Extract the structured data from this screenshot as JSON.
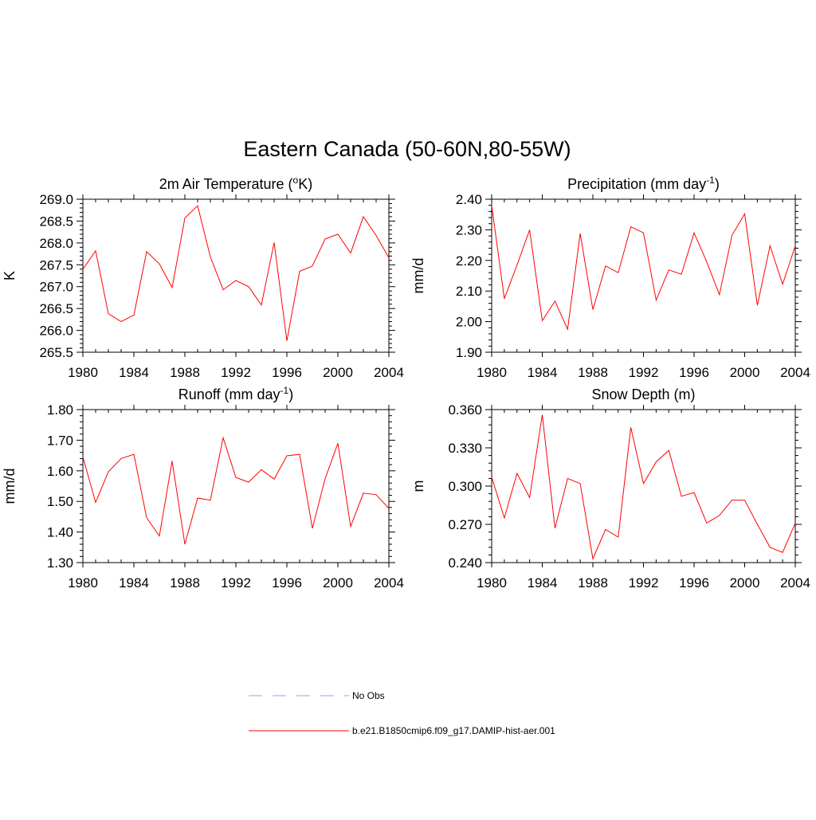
{
  "figure": {
    "title": "Eastern Canada (50-60N,80-55W)"
  },
  "legend": {
    "entries": [
      {
        "label": "No Obs",
        "color": "#9999ff",
        "dash": true
      },
      {
        "label": "b.e21.B1850cmip6.f09_g17.DAMIP-hist-aer.001",
        "color": "#ff0000",
        "dash": false
      }
    ]
  },
  "chart_data": [
    {
      "type": "line",
      "title": "2m Air Temperature (°K)",
      "title_main": "2m Air Temperature (",
      "title_sup": "o",
      "title_end": "K)",
      "ylabel": "K",
      "xlim": [
        1980,
        2004
      ],
      "ylim": [
        265.5,
        269.0
      ],
      "xticks": [
        1980,
        1984,
        1988,
        1992,
        1996,
        2000,
        2004
      ],
      "yticks": [
        "265.5",
        "266.0",
        "266.5",
        "267.0",
        "267.5",
        "268.0",
        "268.5",
        "269.0"
      ],
      "x": [
        1980,
        1981,
        1982,
        1983,
        1984,
        1985,
        1986,
        1987,
        1988,
        1989,
        1990,
        1991,
        1992,
        1993,
        1994,
        1995,
        1996,
        1997,
        1998,
        1999,
        2000,
        2001,
        2002,
        2003,
        2004
      ],
      "series": [
        {
          "name": "b.e21.B1850cmip6.f09_g17.DAMIP-hist-aer.001",
          "color": "#ff0000",
          "values": [
            267.4,
            267.82,
            266.38,
            266.2,
            266.35,
            267.8,
            267.52,
            266.98,
            268.57,
            268.85,
            267.68,
            266.93,
            267.14,
            267.0,
            266.58,
            268.01,
            265.76,
            267.35,
            267.47,
            268.09,
            268.2,
            267.77,
            268.6,
            268.17,
            267.66
          ]
        }
      ]
    },
    {
      "type": "line",
      "title": "Precipitation (mm day-1)",
      "title_main": "Precipitation (mm day",
      "title_sup": "-1",
      "title_end": ")",
      "ylabel": "mm/d",
      "xlim": [
        1980,
        2004
      ],
      "ylim": [
        1.9,
        2.4
      ],
      "xticks": [
        1980,
        1984,
        1988,
        1992,
        1996,
        2000,
        2004
      ],
      "yticks": [
        "1.90",
        "2.00",
        "2.10",
        "2.20",
        "2.30",
        "2.40"
      ],
      "x": [
        1980,
        1981,
        1982,
        1983,
        1984,
        1985,
        1986,
        1987,
        1988,
        1989,
        1990,
        1991,
        1992,
        1993,
        1994,
        1995,
        1996,
        1997,
        1998,
        1999,
        2000,
        2001,
        2002,
        2003,
        2004
      ],
      "series": [
        {
          "name": "b.e21.B1850cmip6.f09_g17.DAMIP-hist-aer.001",
          "color": "#ff0000",
          "values": [
            2.38,
            2.075,
            2.185,
            2.3,
            2.003,
            2.067,
            1.975,
            2.288,
            2.039,
            2.182,
            2.16,
            2.31,
            2.29,
            2.07,
            2.169,
            2.155,
            2.29,
            2.195,
            2.088,
            2.282,
            2.352,
            2.053,
            2.248,
            2.122,
            2.248
          ]
        }
      ]
    },
    {
      "type": "line",
      "title": "Runoff (mm day-1)",
      "title_main": "Runoff (mm day",
      "title_sup": "-1",
      "title_end": ")",
      "ylabel": "mm/d",
      "xlim": [
        1980,
        2004
      ],
      "ylim": [
        1.3,
        1.8
      ],
      "xticks": [
        1980,
        1984,
        1988,
        1992,
        1996,
        2000,
        2004
      ],
      "yticks": [
        "1.30",
        "1.40",
        "1.50",
        "1.60",
        "1.70",
        "1.80"
      ],
      "x": [
        1980,
        1981,
        1982,
        1983,
        1984,
        1985,
        1986,
        1987,
        1988,
        1989,
        1990,
        1991,
        1992,
        1993,
        1994,
        1995,
        1996,
        1997,
        1998,
        1999,
        2000,
        2001,
        2002,
        2003,
        2004
      ],
      "series": [
        {
          "name": "b.e21.B1850cmip6.f09_g17.DAMIP-hist-aer.001",
          "color": "#ff0000",
          "values": [
            1.645,
            1.497,
            1.597,
            1.64,
            1.654,
            1.447,
            1.387,
            1.632,
            1.36,
            1.511,
            1.504,
            1.708,
            1.578,
            1.563,
            1.604,
            1.573,
            1.649,
            1.654,
            1.412,
            1.574,
            1.69,
            1.418,
            1.527,
            1.522,
            1.477
          ]
        }
      ]
    },
    {
      "type": "line",
      "title": "Snow Depth (m)",
      "title_main": "Snow Depth (m)",
      "title_sup": "",
      "title_end": "",
      "ylabel": "m",
      "xlim": [
        1980,
        2004
      ],
      "ylim": [
        0.24,
        0.36
      ],
      "xticks": [
        1980,
        1984,
        1988,
        1992,
        1996,
        2000,
        2004
      ],
      "yticks": [
        "0.240",
        "0.270",
        "0.300",
        "0.330",
        "0.360"
      ],
      "x": [
        1980,
        1981,
        1982,
        1983,
        1984,
        1985,
        1986,
        1987,
        1988,
        1989,
        1990,
        1991,
        1992,
        1993,
        1994,
        1995,
        1996,
        1997,
        1998,
        1999,
        2000,
        2001,
        2002,
        2003,
        2004
      ],
      "series": [
        {
          "name": "b.e21.B1850cmip6.f09_g17.DAMIP-hist-aer.001",
          "color": "#ff0000",
          "values": [
            0.307,
            0.275,
            0.31,
            0.291,
            0.356,
            0.267,
            0.306,
            0.302,
            0.243,
            0.266,
            0.26,
            0.346,
            0.302,
            0.319,
            0.328,
            0.292,
            0.295,
            0.271,
            0.277,
            0.289,
            0.289,
            0.27,
            0.252,
            0.248,
            0.271
          ]
        }
      ]
    }
  ]
}
